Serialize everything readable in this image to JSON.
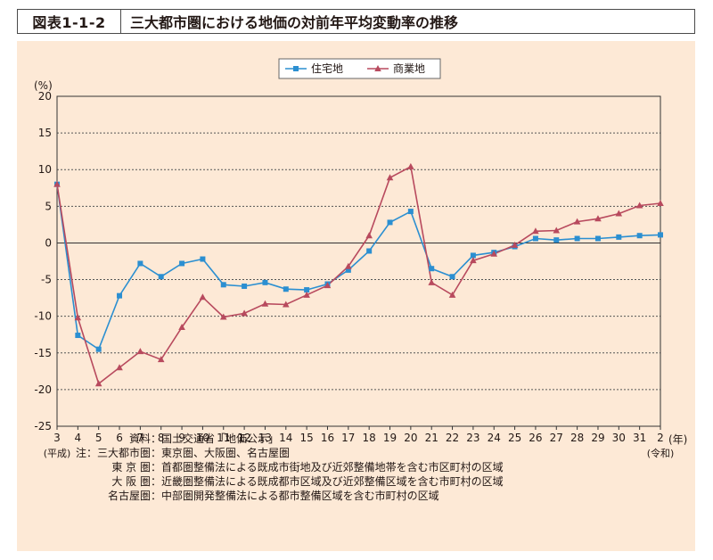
{
  "figure_label": "図表1-1-2",
  "figure_title": "三大都市圏における地価の対前年平均変動率の推移",
  "chart_data": {
    "type": "line",
    "title": "",
    "ylabel": "(%)",
    "xlabel": "(年)",
    "x_era_start": "(平成)",
    "x_era_end": "(令和)",
    "categories": [
      "3",
      "4",
      "5",
      "6",
      "7",
      "8",
      "9",
      "10",
      "11",
      "12",
      "13",
      "14",
      "15",
      "16",
      "17",
      "18",
      "19",
      "20",
      "21",
      "22",
      "23",
      "24",
      "25",
      "26",
      "27",
      "28",
      "29",
      "30",
      "31",
      "2"
    ],
    "ylim": [
      -25,
      20
    ],
    "yticks": [
      20,
      15,
      10,
      5,
      0,
      -5,
      -10,
      -15,
      -20,
      -25
    ],
    "grid": true,
    "legend_position": "top-center",
    "series": [
      {
        "name": "住宅地",
        "color": "#2b8fd1",
        "marker": "square",
        "values": [
          8.0,
          -12.6,
          -14.5,
          -7.2,
          -2.8,
          -4.6,
          -2.8,
          -2.2,
          -5.7,
          -5.9,
          -5.4,
          -6.3,
          -6.4,
          -5.6,
          -3.7,
          -1.1,
          2.8,
          4.3,
          -3.5,
          -4.6,
          -1.7,
          -1.3,
          -0.5,
          0.6,
          0.4,
          0.6,
          0.6,
          0.8,
          1.0,
          1.1
        ]
      },
      {
        "name": "商業地",
        "color": "#b84a5e",
        "marker": "triangle",
        "values": [
          8.0,
          -10.2,
          -19.2,
          -17.0,
          -14.8,
          -15.9,
          -11.5,
          -7.4,
          -10.1,
          -9.6,
          -8.3,
          -8.4,
          -7.1,
          -5.8,
          -3.2,
          1.0,
          8.9,
          10.4,
          -5.4,
          -7.1,
          -2.4,
          -1.5,
          -0.3,
          1.6,
          1.7,
          2.9,
          3.3,
          4.0,
          5.1,
          5.4
        ]
      }
    ]
  },
  "notes": [
    {
      "key": "資料：",
      "value": "国土交通省「地価公示」"
    },
    {
      "key": "注：三大都市圏：",
      "value": "東京圏、大阪圏、名古屋圏"
    },
    {
      "key": "東 京 圏：",
      "value": "首都圏整備法による既成市街地及び近郊整備地帯を含む市区町村の区域"
    },
    {
      "key": "大 阪 圏：",
      "value": "近畿圏整備法による既成都市区域及び近郊整備区域を含む市町村の区域"
    },
    {
      "key": "名古屋圏：",
      "value": "中部圏開発整備法による都市整備区域を含む市町村の区域"
    }
  ]
}
